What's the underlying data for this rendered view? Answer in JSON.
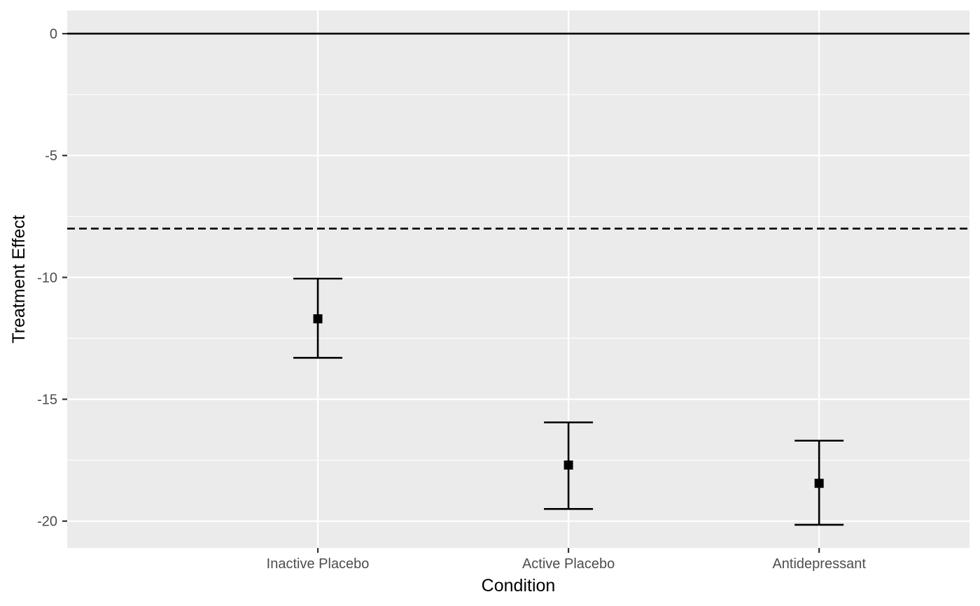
{
  "chart_data": {
    "type": "scatter",
    "title": "",
    "xlabel": "Condition",
    "ylabel": "Treatment Effect",
    "categories": [
      "Inactive Placebo",
      "Active Placebo",
      "Antidepressant"
    ],
    "series": [
      {
        "values": [
          -11.7,
          -17.7,
          -18.45
        ],
        "lower": [
          -13.3,
          -19.5,
          -20.15
        ],
        "upper": [
          -10.05,
          -15.95,
          -16.7
        ]
      }
    ],
    "ylim": [
      -21.1,
      0.95
    ],
    "yticks": [
      0,
      -5,
      -10,
      -15,
      -20
    ],
    "ytick_labels": [
      "0",
      "-5",
      "-10",
      "-15",
      "-20"
    ],
    "reference_lines": [
      {
        "y": 0,
        "style": "solid"
      },
      {
        "y": -8,
        "style": "dashed"
      }
    ],
    "grid": true,
    "legend": "none",
    "colors": {
      "panel": "#ebebeb",
      "grid": "#ffffff",
      "marks": "#000000",
      "tick_text": "#4d4d4d"
    }
  }
}
